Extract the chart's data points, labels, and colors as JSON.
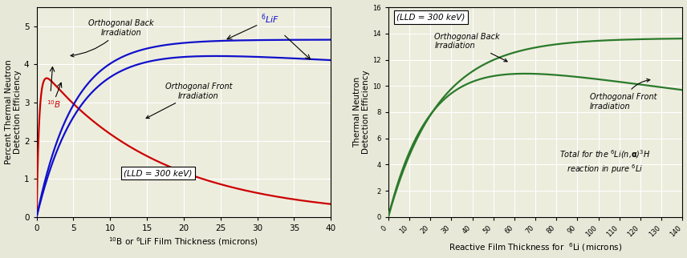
{
  "left": {
    "xlim": [
      0,
      40
    ],
    "ylim": [
      0,
      5.5
    ],
    "xticks": [
      0,
      5,
      10,
      15,
      20,
      25,
      30,
      35,
      40
    ],
    "yticks": [
      0,
      1,
      2,
      3,
      4,
      5
    ],
    "xlabel": "$^{10}$B or $^{6}$LiF Film Thickness (microns)",
    "ylabel": "Percent Thermal Neutron\nDetection Efficiency",
    "lld_label": "(LLD = 300 keV)",
    "color_red": "#cc0000",
    "color_blue": "#1010cc"
  },
  "right": {
    "xlim": [
      0,
      140
    ],
    "ylim": [
      0,
      16
    ],
    "xticks": [
      0,
      10,
      20,
      30,
      40,
      50,
      60,
      70,
      80,
      90,
      100,
      110,
      120,
      130,
      140
    ],
    "yticks": [
      0,
      2,
      4,
      6,
      8,
      10,
      12,
      14,
      16
    ],
    "xlabel": "Reactive Film Thickness for  $^{6}$Li (microns)",
    "ylabel": "Thermal Neutron\nDetection Efficiency",
    "lld_label": "(LLD = 300 keV)",
    "color_green": "#2a7a2a"
  },
  "bg_color": "#ededde",
  "grid_color": "#ffffff",
  "fig_bg": "#e8e8d8"
}
